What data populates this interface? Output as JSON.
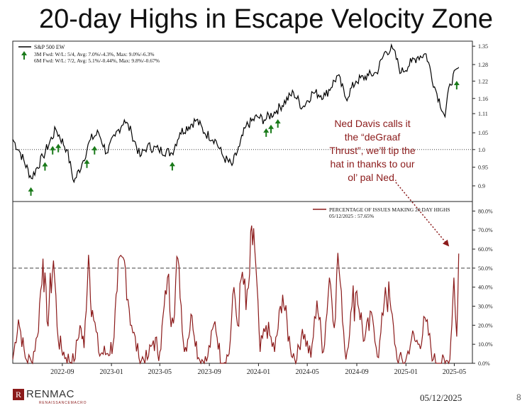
{
  "title": "20-day Highs in Escape Velocity Zone",
  "colors": {
    "price_line": "#000000",
    "breadth_line": "#8b1a1a",
    "arrow": "#1a7a1a",
    "reference": "#666666"
  },
  "annotation": {
    "lines": [
      "Ned Davis calls it",
      "the “deGraaf",
      "Thrust”, we’ll tip the",
      "hat in thanks to our",
      "ol’ pal Ned."
    ]
  },
  "footer": {
    "logo_text": "RENMAC",
    "logo_sub": "RENAISSANCEMACRO",
    "date": "05/12/2025",
    "page_number": "8"
  },
  "chart_data": [
    {
      "type": "line",
      "legend": {
        "placement": "top-left",
        "series_label": "S&P 500 EW",
        "signal_line_1": "3M Fwd: W/L: 5/4, Avg: 7.0%/-4.3%, Max: 9.0%/-6.3%",
        "signal_line_2": "6M Fwd: W/L: 7/2, Avg: 5.1%/-0.44%, Max: 9.8%/-0.67%"
      },
      "y_scale": "log",
      "ylim": [
        0.86,
        1.37
      ],
      "y_ticks": [
        "0.9",
        "0.95",
        "1.0",
        "1.05",
        "1.11",
        "1.16",
        "1.22",
        "1.28",
        "1.35"
      ],
      "y_tick_values": [
        0.9,
        0.95,
        1.0,
        1.05,
        1.11,
        1.16,
        1.22,
        1.28,
        1.35
      ],
      "reference_line": 1.0,
      "series": [
        {
          "name": "S&P 500 EW",
          "dates": [
            "2022-05-01",
            "2022-05-20",
            "2022-06-16",
            "2022-07-15",
            "2022-08-16",
            "2022-09-12",
            "2022-09-30",
            "2022-10-20",
            "2022-11-10",
            "2022-11-30",
            "2022-12-20",
            "2023-01-10",
            "2023-02-02",
            "2023-02-20",
            "2023-03-13",
            "2023-03-31",
            "2023-04-28",
            "2023-05-31",
            "2023-06-20",
            "2023-07-31",
            "2023-08-20",
            "2023-09-15",
            "2023-10-05",
            "2023-10-27",
            "2023-11-15",
            "2023-12-01",
            "2023-12-29",
            "2024-01-15",
            "2024-02-15",
            "2024-03-28",
            "2024-04-19",
            "2024-05-15",
            "2024-06-15",
            "2024-07-16",
            "2024-08-05",
            "2024-08-30",
            "2024-09-30",
            "2024-10-20",
            "2024-11-11",
            "2024-11-29",
            "2024-12-20",
            "2025-01-15",
            "2025-01-31",
            "2025-02-20",
            "2025-03-13",
            "2025-04-08",
            "2025-04-20",
            "2025-05-12"
          ],
          "values": [
            1.03,
            0.99,
            0.92,
            0.98,
            1.06,
            1.0,
            0.91,
            0.96,
            1.03,
            1.05,
            0.99,
            1.04,
            1.09,
            1.05,
            0.98,
            1.01,
            1.0,
            0.99,
            1.05,
            1.09,
            1.05,
            1.03,
            0.98,
            0.955,
            1.01,
            1.07,
            1.1,
            1.09,
            1.12,
            1.18,
            1.13,
            1.18,
            1.17,
            1.24,
            1.16,
            1.22,
            1.24,
            1.25,
            1.33,
            1.34,
            1.25,
            1.29,
            1.31,
            1.32,
            1.2,
            1.1,
            1.21,
            1.27
          ]
        }
      ],
      "signals": [
        "2022-06-15",
        "2022-07-20",
        "2022-08-08",
        "2022-08-22",
        "2022-11-01",
        "2022-11-20",
        "2023-06-01",
        "2024-01-20",
        "2024-02-01",
        "2024-02-18",
        "2025-05-07"
      ]
    },
    {
      "type": "line",
      "legend": {
        "placement": "top-center",
        "series_label": "PERCENTAGE OF ISSUES MAKING 20 DAY HIGHS",
        "last_value_label": "05/12/2025 : 57.65%"
      },
      "ylim": [
        0,
        85
      ],
      "y_ticks": [
        "0.0%",
        "10.0%",
        "20.0%",
        "30.0%",
        "40.0%",
        "50.0%",
        "60.0%",
        "70.0%",
        "80.0%"
      ],
      "y_tick_values": [
        0,
        10,
        20,
        30,
        40,
        50,
        60,
        70,
        80
      ],
      "reference_line": 50,
      "series": [
        {
          "name": "PERCENTAGE OF ISSUES MAKING 20 DAY HIGHS",
          "dates": [
            "2022-05-01",
            "2022-05-15",
            "2022-06-01",
            "2022-06-16",
            "2022-07-01",
            "2022-07-15",
            "2022-07-25",
            "2022-08-10",
            "2022-08-22",
            "2022-09-10",
            "2022-09-30",
            "2022-10-15",
            "2022-10-25",
            "2022-11-05",
            "2022-11-15",
            "2022-11-30",
            "2022-12-20",
            "2023-01-05",
            "2023-01-15",
            "2023-02-02",
            "2023-02-20",
            "2023-03-10",
            "2023-03-31",
            "2023-04-15",
            "2023-05-01",
            "2023-05-20",
            "2023-06-01",
            "2023-06-15",
            "2023-07-01",
            "2023-07-20",
            "2023-08-05",
            "2023-08-25",
            "2023-09-15",
            "2023-10-01",
            "2023-10-20",
            "2023-11-01",
            "2023-11-10",
            "2023-11-22",
            "2023-12-01",
            "2023-12-10",
            "2023-12-20",
            "2024-01-05",
            "2024-01-20",
            "2024-02-10",
            "2024-03-01",
            "2024-03-20",
            "2024-04-05",
            "2024-04-19",
            "2024-05-10",
            "2024-05-25",
            "2024-06-10",
            "2024-06-25",
            "2024-07-10",
            "2024-07-16",
            "2024-08-05",
            "2024-08-20",
            "2024-09-01",
            "2024-09-20",
            "2024-10-10",
            "2024-10-25",
            "2024-11-11",
            "2024-11-25",
            "2024-12-10",
            "2024-12-31",
            "2025-01-15",
            "2025-01-31",
            "2025-02-20",
            "2025-03-10",
            "2025-04-08",
            "2025-04-20",
            "2025-04-30",
            "2025-05-07",
            "2025-05-12"
          ],
          "values": [
            2,
            23,
            3,
            1,
            14,
            55,
            22,
            54,
            12,
            3,
            1,
            20,
            8,
            57,
            28,
            6,
            5,
            10,
            38,
            54,
            20,
            3,
            2,
            12,
            6,
            45,
            24,
            55,
            6,
            25,
            3,
            1,
            22,
            0,
            5,
            40,
            20,
            48,
            28,
            47,
            71,
            6,
            20,
            6,
            36,
            8,
            2,
            18,
            3,
            33,
            6,
            45,
            24,
            58,
            2,
            30,
            38,
            12,
            24,
            3,
            40,
            28,
            2,
            1,
            13,
            10,
            22,
            2,
            0,
            2,
            45,
            14,
            57.65
          ]
        }
      ]
    }
  ]
}
